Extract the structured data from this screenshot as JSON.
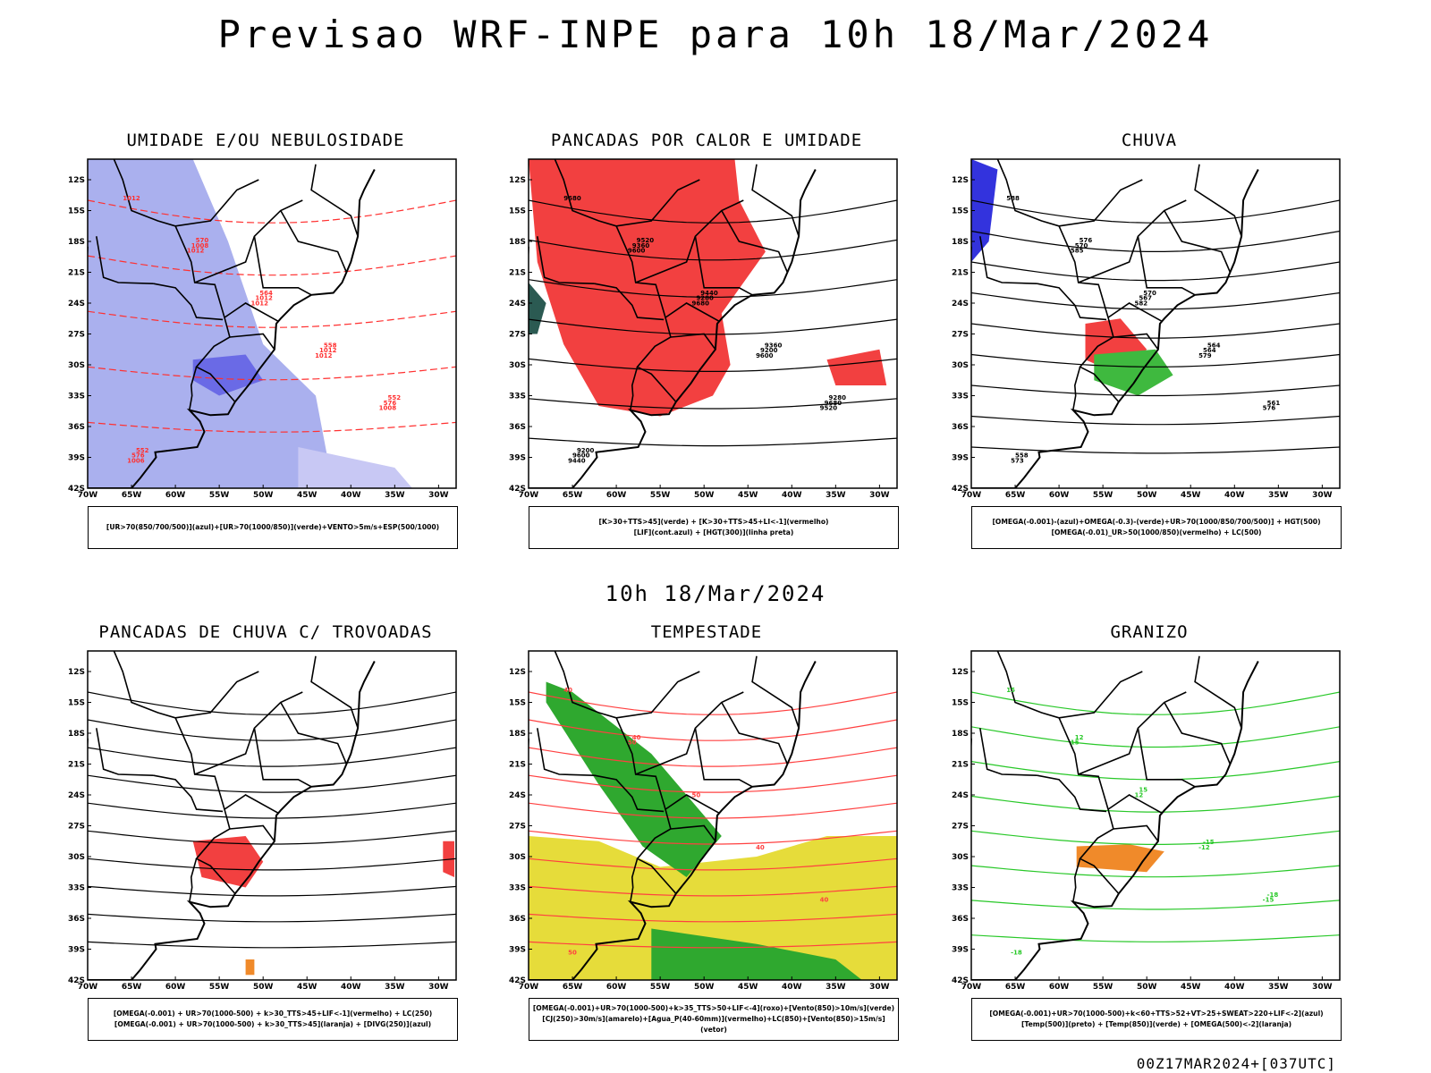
{
  "title": "Previsao WRF-INPE  para 10h 18/Mar/2024",
  "mid_date": "10h 18/Mar/2024",
  "footer": "00Z17MAR2024+[037UTC]",
  "axes": {
    "y_ticks": [
      "12S",
      "15S",
      "18S",
      "21S",
      "24S",
      "27S",
      "30S",
      "33S",
      "36S",
      "39S",
      "42S"
    ],
    "x_ticks": [
      "70W",
      "65W",
      "60W",
      "55W",
      "50W",
      "45W",
      "40W",
      "35W",
      "30W"
    ]
  },
  "chart_data": [
    {
      "type": "map",
      "title": "UMIDADE E/OU NEBULOSIDADE",
      "legend": [
        "[UR>70(850/700/500)](azul)+[UR>70(1000/850)](verde)+VENTO>5m/s+ESP(500/1000)"
      ],
      "contour_labels": [
        "1012",
        "1012",
        "1012",
        "1012",
        "1008",
        "1006",
        "1008",
        "1012",
        "1012",
        "576",
        "576",
        "570",
        "564",
        "558",
        "552",
        "552"
      ],
      "xlim": [
        -70,
        -28
      ],
      "ylim": [
        -42,
        -10
      ]
    },
    {
      "type": "map",
      "title": "PANCADAS POR CALOR E UMIDADE",
      "legend": [
        "[K>30+TTS>45](verde) + [K>30+TTS>45+LI<-1](vermelho)",
        "[LIF](cont.azul) + [HGT(300)](linha preta)"
      ],
      "contour_labels": [
        "9680",
        "9600",
        "9680",
        "9600",
        "9520",
        "9440",
        "9360",
        "9280",
        "9200",
        "9680",
        "9600",
        "9520",
        "9440",
        "9360",
        "9280",
        "9200"
      ],
      "xlim": [
        -70,
        -28
      ],
      "ylim": [
        -42,
        -10
      ]
    },
    {
      "type": "map",
      "title": "CHUVA",
      "legend": [
        "[OMEGA(-0.001)-(azul)+OMEGA(-0.3)-(verde)+UR>70(1000/850/700/500)] + HGT(500)",
        "[OMEGA(-0.01)_UR>50(1000/850)(vermelho) + LC(500)"
      ],
      "contour_labels": [
        "588",
        "585",
        "582",
        "579",
        "576",
        "573",
        "570",
        "567",
        "564",
        "561",
        "558",
        "576",
        "570",
        "564"
      ],
      "xlim": [
        -70,
        -28
      ],
      "ylim": [
        -42,
        -10
      ]
    },
    {
      "type": "map",
      "title": "PANCADAS DE CHUVA C/ TROVOADAS",
      "legend": [
        "[OMEGA(-0.001) + UR>70(1000-500) + k>30_TTS>45+LIF<-1](vermelho) + LC(250)",
        "[OMEGA(-0.001) + UR>70(1000-500) + k>30_TTS>45](laranja) + [DIVG(250)](azul)"
      ],
      "contour_labels": [],
      "xlim": [
        -70,
        -28
      ],
      "ylim": [
        -42,
        -10
      ]
    },
    {
      "type": "map",
      "title": "TEMPESTADE",
      "legend": [
        "[OMEGA(-0.001)+UR>70(1000-500)+k>35_TTS>50+LIF<-4](roxo)+[Vento(850)>10m/s](verde)",
        "[CJ(250)>30m/s](amarelo)+[Agua_P(40-60mm)](vermelho)+LC(850)+[Vento(850)>15m/s](vetor)"
      ],
      "contour_labels": [
        "40",
        "50",
        "50",
        "40",
        "40",
        "50",
        "40"
      ],
      "xlim": [
        -70,
        -28
      ],
      "ylim": [
        -42,
        -10
      ]
    },
    {
      "type": "map",
      "title": "GRANIZO",
      "legend": [
        "[OMEGA(-0.001)+UR>70(1000-500)+k<60+TTS>52+VT>25+SWEAT>220+LIF<-2](azul)",
        "[Temp(500)](preto) + [Temp(850)](verde) + [OMEGA(500)<-2](laranja)"
      ],
      "contour_labels": [
        "15",
        "15",
        "12",
        "-12",
        "-15",
        "-18",
        "12",
        "15",
        "-15",
        "-18"
      ],
      "xlim": [
        -70,
        -28
      ],
      "ylim": [
        -42,
        -10
      ]
    }
  ]
}
